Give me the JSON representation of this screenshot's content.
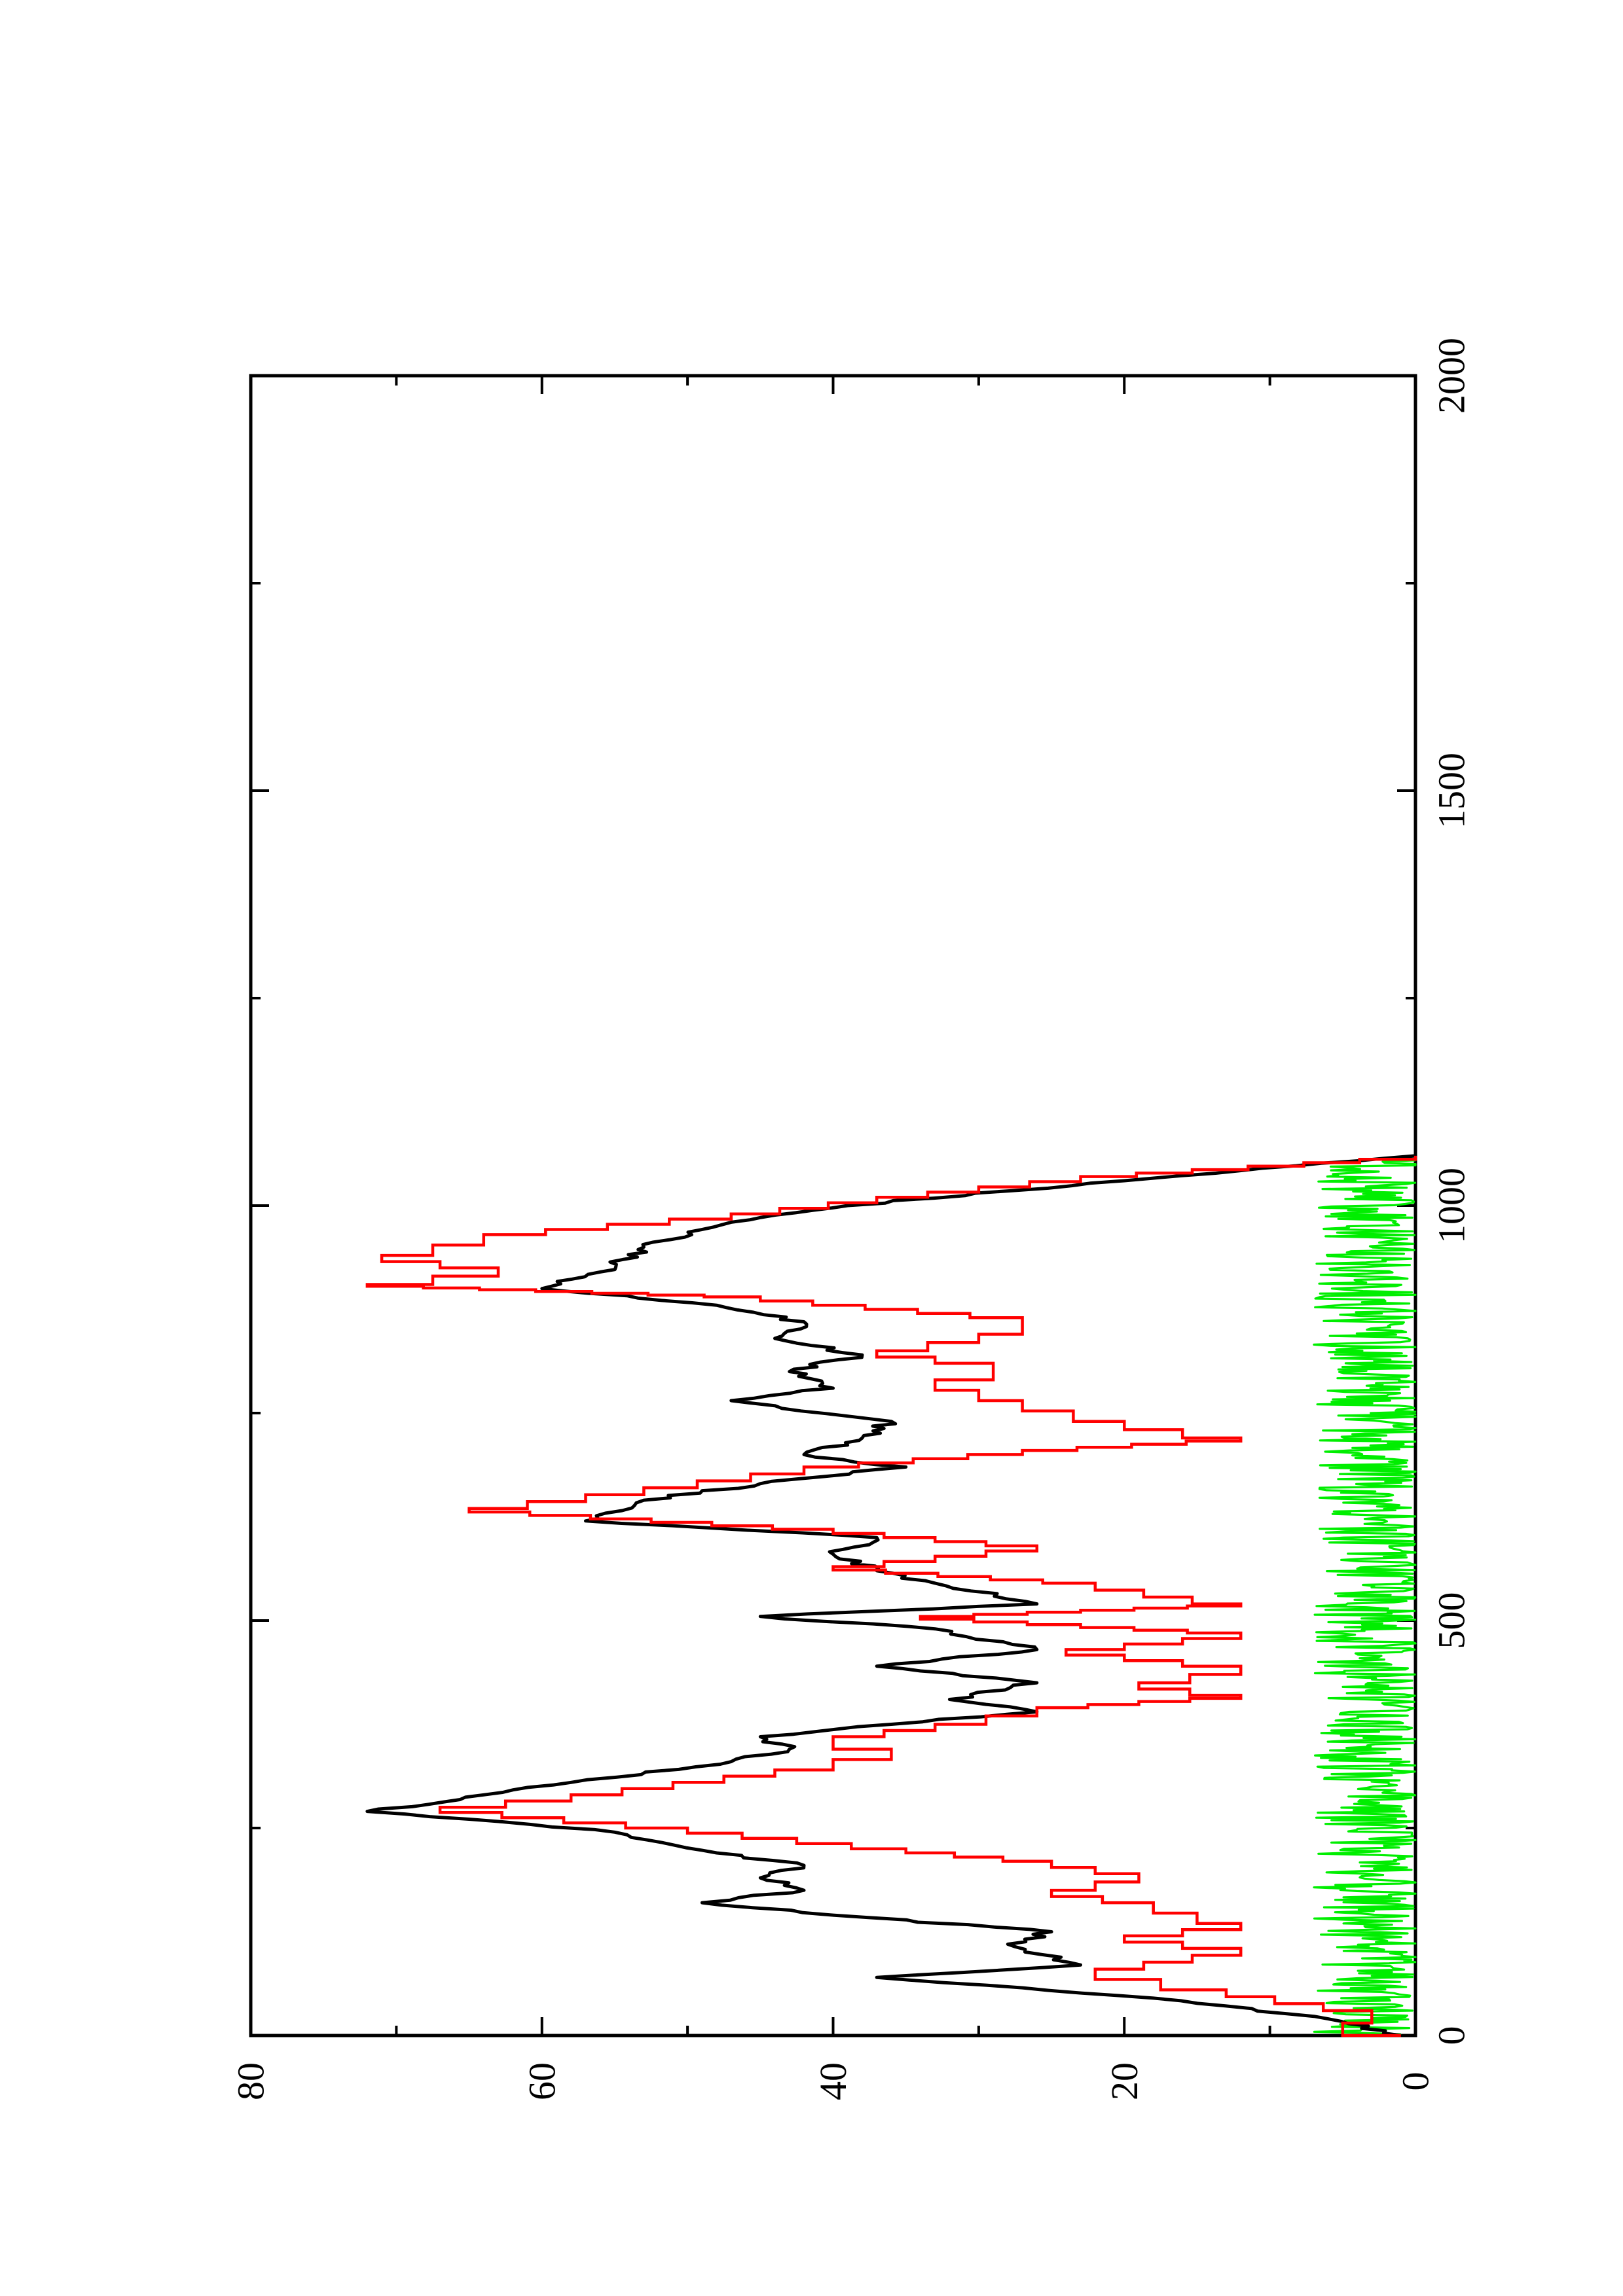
{
  "chart_data": {
    "type": "line",
    "title": "",
    "xlabel": "",
    "ylabel": "",
    "orientation": "rotated-90-clockwise",
    "xlim": [
      0,
      2000
    ],
    "ylim": [
      0,
      80
    ],
    "x_ticks": [
      "0",
      "500",
      "1000",
      "1500",
      "2000"
    ],
    "y_ticks": [
      "0",
      "20",
      "40",
      "60",
      "80"
    ],
    "x_minor_step": 250,
    "y_minor_step": 10,
    "grid": false,
    "legend": "none",
    "series": [
      {
        "color": "#000000",
        "style": "noisy-line",
        "x": [
          0,
          20,
          45,
          70,
          85,
          110,
          125,
          145,
          160,
          175,
          190,
          205,
          220,
          245,
          270,
          290,
          305,
          330,
          345,
          360,
          375,
          390,
          405,
          425,
          445,
          465,
          490,
          505,
          520,
          545,
          560,
          580,
          600,
          620,
          645,
          665,
          685,
          700,
          720,
          740,
          765,
          780,
          800,
          820,
          840,
          860,
          880,
          900,
          920,
          950,
          980,
          1000,
          1030,
          1060
        ],
        "y": [
          1,
          6,
          18,
          37,
          23,
          28,
          25,
          40,
          49,
          42,
          45,
          42,
          48,
          55,
          72,
          64,
          58,
          47,
          43,
          45,
          36,
          26,
          32,
          26,
          37,
          26,
          33,
          45,
          26,
          33,
          37,
          40,
          37,
          57,
          53,
          45,
          35,
          42,
          38,
          36,
          47,
          40,
          43,
          38,
          44,
          42,
          48,
          60,
          56,
          53,
          47,
          39,
          20,
          0
        ]
      },
      {
        "color": "#ff0000",
        "style": "step",
        "x": [
          0,
          15,
          30,
          55,
          80,
          105,
          120,
          135,
          160,
          175,
          195,
          210,
          225,
          250,
          275,
          290,
          320,
          345,
          360,
          375,
          395,
          410,
          425,
          445,
          465,
          485,
          505,
          520,
          545,
          565,
          590,
          610,
          635,
          660,
          685,
          705,
          720,
          740,
          765,
          790,
          810,
          825,
          845,
          865,
          890,
          905,
          925,
          940,
          965,
          990,
          1010,
          1035,
          1060
        ],
        "y": [
          1,
          5,
          3,
          13,
          22,
          12,
          20,
          12,
          18,
          25,
          19,
          25,
          35,
          50,
          67,
          58,
          44,
          36,
          40,
          33,
          26,
          12,
          19,
          12,
          24,
          12,
          34,
          12,
          22,
          40,
          26,
          40,
          65,
          53,
          42,
          27,
          12,
          20,
          27,
          33,
          29,
          37,
          30,
          27,
          45,
          72,
          63,
          71,
          64,
          47,
          37,
          23,
          0
        ]
      },
      {
        "color": "#00ee00",
        "style": "noise",
        "x": [
          0,
          1060
        ],
        "y_range": [
          0,
          7
        ]
      }
    ]
  }
}
